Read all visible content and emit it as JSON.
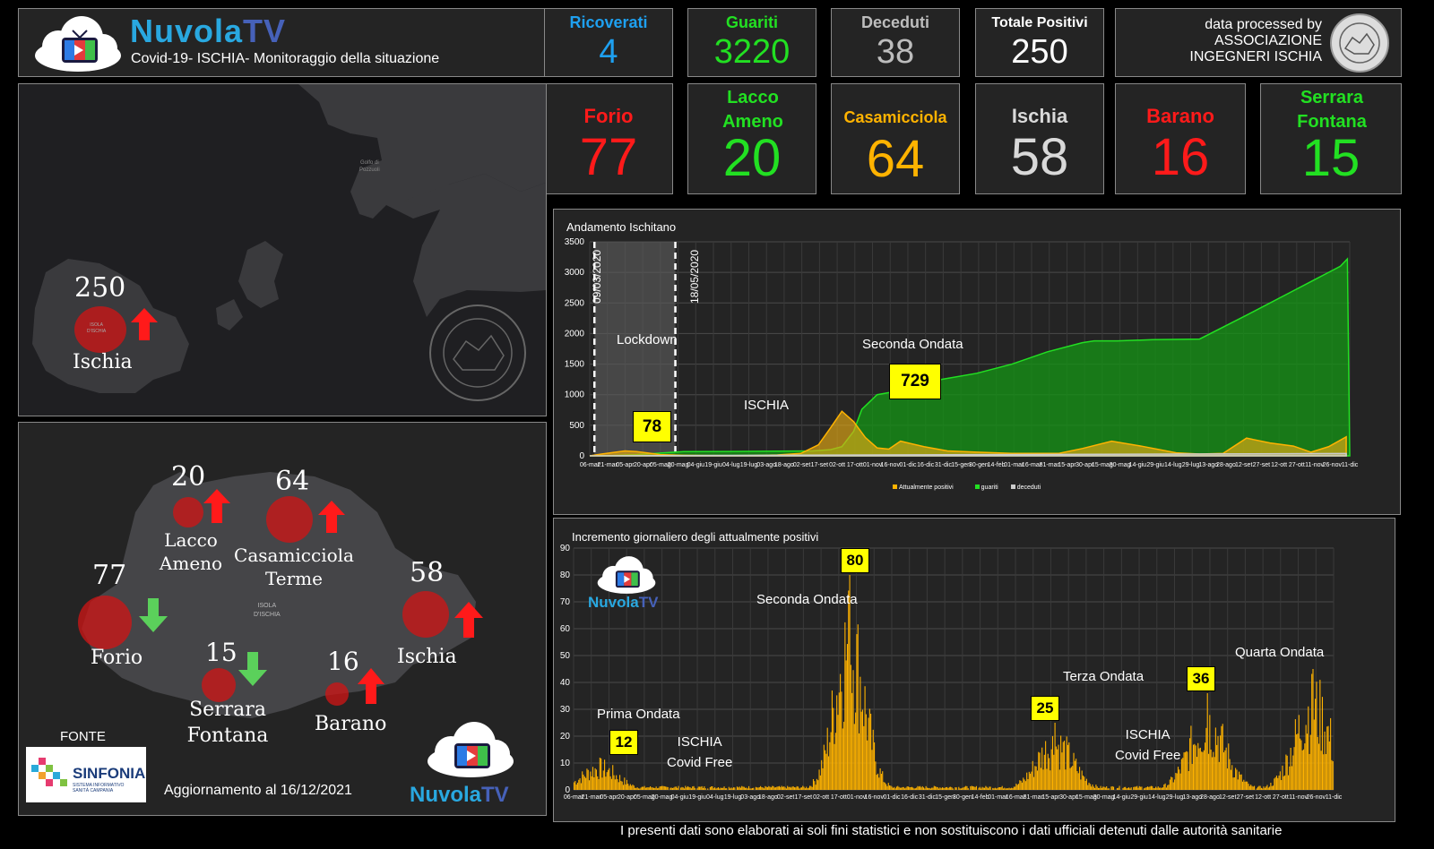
{
  "header": {
    "brand": "NuvolaTV",
    "brand_a": "Nuvola",
    "brand_b": "TV",
    "subtitle": "Covid-19- ISCHIA- Monitoraggio della situazione",
    "credit_line1": "data processed by",
    "credit_line2": "ASSOCIAZIONE",
    "credit_line3": "INGEGNERI ISCHIA"
  },
  "stats": [
    {
      "label": "Ricoverati",
      "value": "4",
      "color": "#1ea0f0"
    },
    {
      "label": "Guariti",
      "value": "3220",
      "color": "#22e022"
    },
    {
      "label": "Deceduti",
      "value": "38",
      "color": "#bdbdbd"
    },
    {
      "label": "Totale Positivi",
      "value": "250",
      "color": "#ffffff"
    }
  ],
  "towns": [
    {
      "label": "Forio",
      "value": "77",
      "color": "#ff1a1a"
    },
    {
      "label": "Lacco Ameno",
      "value": "20",
      "color": "#22e022"
    },
    {
      "label": "Casamicciola",
      "value": "64",
      "color": "#ffb300"
    },
    {
      "label": "Ischia",
      "value": "58",
      "color": "#d9d9d9"
    },
    {
      "label": "Barano",
      "value": "16",
      "color": "#ff1a1a"
    },
    {
      "label": "Serrara Fontana",
      "value": "15",
      "color": "#22e022"
    }
  ],
  "overview_map": {
    "value": "250",
    "label": "Ischia",
    "sea_label_1": "Golfo di",
    "sea_label_2": "Pozzuoli",
    "island_label_1": "ISOLA",
    "island_label_2": "D'ISCHIA"
  },
  "detail_map": {
    "island_label_1": "ISOLA",
    "island_label_2": "D'ISCHIA",
    "towns": [
      {
        "value": "20",
        "name1": "Lacco",
        "name2": "Ameno",
        "trend": "up"
      },
      {
        "value": "64",
        "name1": "Casamicciola",
        "name2": "Terme",
        "trend": "up"
      },
      {
        "value": "77",
        "name1": "Forio",
        "name2": "",
        "trend": "down"
      },
      {
        "value": "58",
        "name1": "Ischia",
        "name2": "",
        "trend": "up"
      },
      {
        "value": "15",
        "name1": "Serrara",
        "name2": "Fontana",
        "trend": "down"
      },
      {
        "value": "16",
        "name1": "Barano",
        "name2": "",
        "trend": "up"
      }
    ],
    "source_label": "FONTE",
    "source_name": "SINFONIA",
    "source_sub1": "SISTEMA INFORMATIVO",
    "source_sub2": "SANITÀ CAMPANIA",
    "update_text": "Aggiornamento al 16/12/2021"
  },
  "chart_data": [
    {
      "type": "area",
      "title": "Andamento Ischitano",
      "ylim": [
        0,
        3500
      ],
      "yticks": [
        0,
        500,
        1000,
        1500,
        2000,
        2500,
        3000,
        3500
      ],
      "x_tick_labels": [
        "06-mar",
        "21-mar",
        "05-apr",
        "20-apr",
        "05-mag",
        "20-mag",
        "04-giu",
        "19-giu",
        "04-lug",
        "19-lug",
        "03-ago",
        "18-ago",
        "02-set",
        "17-set",
        "02-ott",
        "17-ott",
        "01-nov",
        "16-nov",
        "01-dic",
        "16-dic",
        "31-dic",
        "15-gen",
        "30-gen",
        "14-feb",
        "01-mar",
        "16-mar",
        "31-mar",
        "15-apr",
        "30-apr",
        "15-mag",
        "30-mag",
        "14-giu",
        "29-giu",
        "14-lug",
        "29-lug",
        "13-ago",
        "28-ago",
        "12-set",
        "27-set",
        "12-ott",
        "27-ott",
        "11-nov",
        "26-nov",
        "11-dic"
      ],
      "legend": [
        "Attualmente positivi",
        "guariti",
        "deceduti"
      ],
      "series": [
        {
          "name": "Attualmente positivi",
          "color": "#ffb300",
          "x": [
            0,
            10,
            20,
            30,
            40,
            50,
            60,
            80,
            100,
            120,
            140,
            160,
            180,
            195,
            205,
            215,
            225,
            235,
            245,
            255,
            265,
            285,
            305,
            330,
            360,
            400,
            420,
            445,
            470,
            500,
            520,
            540,
            560,
            580,
            600,
            615,
            630,
            645
          ],
          "values": [
            0,
            30,
            55,
            80,
            70,
            45,
            20,
            10,
            5,
            3,
            5,
            15,
            40,
            180,
            450,
            729,
            560,
            300,
            130,
            110,
            240,
            150,
            80,
            60,
            40,
            40,
            120,
            240,
            160,
            50,
            30,
            40,
            290,
            210,
            160,
            60,
            150,
            310
          ]
        },
        {
          "name": "guariti",
          "color": "#22e022",
          "x": [
            0,
            20,
            40,
            60,
            80,
            120,
            160,
            190,
            205,
            215,
            225,
            232,
            245,
            260,
            280,
            300,
            330,
            360,
            390,
            420,
            430,
            450,
            480,
            520,
            560,
            580,
            600,
            610,
            620,
            630,
            640,
            646,
            648
          ],
          "values": [
            0,
            5,
            20,
            45,
            70,
            72,
            76,
            80,
            100,
            150,
            400,
            760,
            1000,
            1050,
            1100,
            1250,
            1350,
            1500,
            1700,
            1850,
            1880,
            1880,
            1900,
            1910,
            2300,
            2500,
            2700,
            2800,
            2900,
            3000,
            3100,
            3220,
            0
          ]
        },
        {
          "name": "deceduti",
          "color": "#cccccc",
          "x": [
            0,
            645
          ],
          "values": [
            0,
            38
          ]
        }
      ],
      "annotations": [
        {
          "text": "78",
          "x": 38,
          "y": 78,
          "box": true
        },
        {
          "text": "729",
          "x": 215,
          "y": 729,
          "box": true
        },
        {
          "text": "Lockdown",
          "x": 35,
          "y": 2000
        },
        {
          "text": "Seconda Ondata",
          "x": 220,
          "y": 1880
        },
        {
          "text": "ISCHIA",
          "x": 120,
          "y": 900
        }
      ],
      "vlines": [
        {
          "x": 4,
          "label": "09/03/2020"
        },
        {
          "x": 73,
          "label": "18/05/2020"
        }
      ]
    },
    {
      "type": "bar",
      "title": "Incremento giornaliero degli attualmente positivi",
      "ylim": [
        0,
        90
      ],
      "yticks": [
        0,
        10,
        20,
        30,
        40,
        50,
        60,
        70,
        80,
        90
      ],
      "x_tick_labels": [
        "06-mar",
        "21-mar",
        "05-apr",
        "20-apr",
        "05-mag",
        "20-mag",
        "04-giu",
        "19-giu",
        "04-lug",
        "19-lug",
        "03-ago",
        "18-ago",
        "02-set",
        "17-set",
        "02-ott",
        "17-ott",
        "01-nov",
        "16-nov",
        "01-dic",
        "16-dic",
        "31-dic",
        "15-gen",
        "30-gen",
        "14-feb",
        "01-mar",
        "16-mar",
        "31-mar",
        "15-apr",
        "30-apr",
        "15-mag",
        "30-mag",
        "14-giu",
        "29-giu",
        "14-lug",
        "29-lug",
        "13-ago",
        "28-ago",
        "12-set",
        "27-set",
        "12-ott",
        "27-ott",
        "11-nov",
        "26-nov",
        "11-dic"
      ],
      "color": "#ffb300",
      "peaks": [
        {
          "x": 22,
          "value": 12
        },
        {
          "x": 235,
          "value": 80
        },
        {
          "x": 410,
          "value": 25
        },
        {
          "x": 540,
          "value": 36
        },
        {
          "x": 630,
          "value": 45
        }
      ],
      "annotations": [
        {
          "text": "12",
          "box": true
        },
        {
          "text": "80",
          "box": true
        },
        {
          "text": "25",
          "box": true
        },
        {
          "text": "36",
          "box": true
        },
        {
          "text": "Prima Ondata"
        },
        {
          "text": "Seconda Ondata"
        },
        {
          "text": "Terza Ondata"
        },
        {
          "text": "Quarta Ondata"
        },
        {
          "text": "ISCHIA Covid Free"
        },
        {
          "text": "ISCHIA Covid Free"
        }
      ]
    }
  ],
  "labels": {
    "lockdown": "Lockdown",
    "seconda": "Seconda Ondata",
    "ischia": "ISCHIA",
    "date1": "09/03/2020",
    "date2": "18/05/2020",
    "box78": "78",
    "box729": "729",
    "prima": "Prima Ondata",
    "terza": "Terza Ondata",
    "quarta": "Quarta Ondata",
    "covid_free1": "ISCHIA",
    "covid_free2": "Covid Free",
    "box12": "12",
    "box80": "80",
    "box25": "25",
    "box36": "36"
  },
  "footer": {
    "disclaimer": "I presenti dati sono elaborati ai soli fini statistici e non sostituiscono i dati ufficiali detenuti dalle autorità sanitarie"
  }
}
